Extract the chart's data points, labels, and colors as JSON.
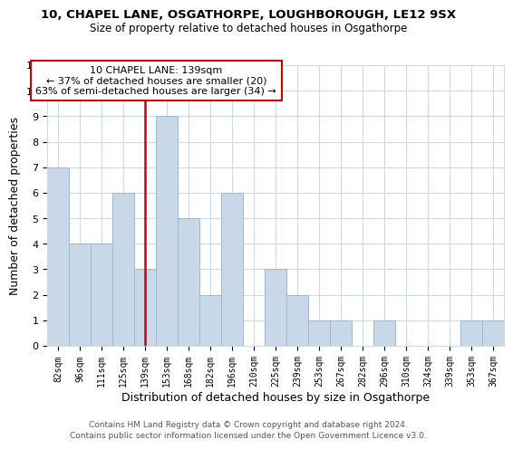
{
  "title1": "10, CHAPEL LANE, OSGATHORPE, LOUGHBOROUGH, LE12 9SX",
  "title2": "Size of property relative to detached houses in Osgathorpe",
  "xlabel": "Distribution of detached houses by size in Osgathorpe",
  "ylabel": "Number of detached properties",
  "footer1": "Contains HM Land Registry data © Crown copyright and database right 2024.",
  "footer2": "Contains public sector information licensed under the Open Government Licence v3.0.",
  "annotation_title": "10 CHAPEL LANE: 139sqm",
  "annotation_line1": "← 37% of detached houses are smaller (20)",
  "annotation_line2": "63% of semi-detached houses are larger (34) →",
  "bar_labels": [
    "82sqm",
    "96sqm",
    "111sqm",
    "125sqm",
    "139sqm",
    "153sqm",
    "168sqm",
    "182sqm",
    "196sqm",
    "210sqm",
    "225sqm",
    "239sqm",
    "253sqm",
    "267sqm",
    "282sqm",
    "296sqm",
    "310sqm",
    "324sqm",
    "339sqm",
    "353sqm",
    "367sqm"
  ],
  "bar_values": [
    7,
    4,
    4,
    6,
    3,
    9,
    5,
    2,
    6,
    0,
    3,
    2,
    1,
    1,
    0,
    1,
    0,
    0,
    0,
    1,
    1
  ],
  "bar_color": "#c8d8e8",
  "bar_edge_color": "#a0b8cc",
  "property_line_x": 4,
  "ylim": [
    0,
    11
  ],
  "yticks": [
    0,
    1,
    2,
    3,
    4,
    5,
    6,
    7,
    8,
    9,
    10,
    11
  ],
  "background_color": "#ffffff",
  "grid_color": "#d0d8e0",
  "red_line_color": "#cc0000"
}
